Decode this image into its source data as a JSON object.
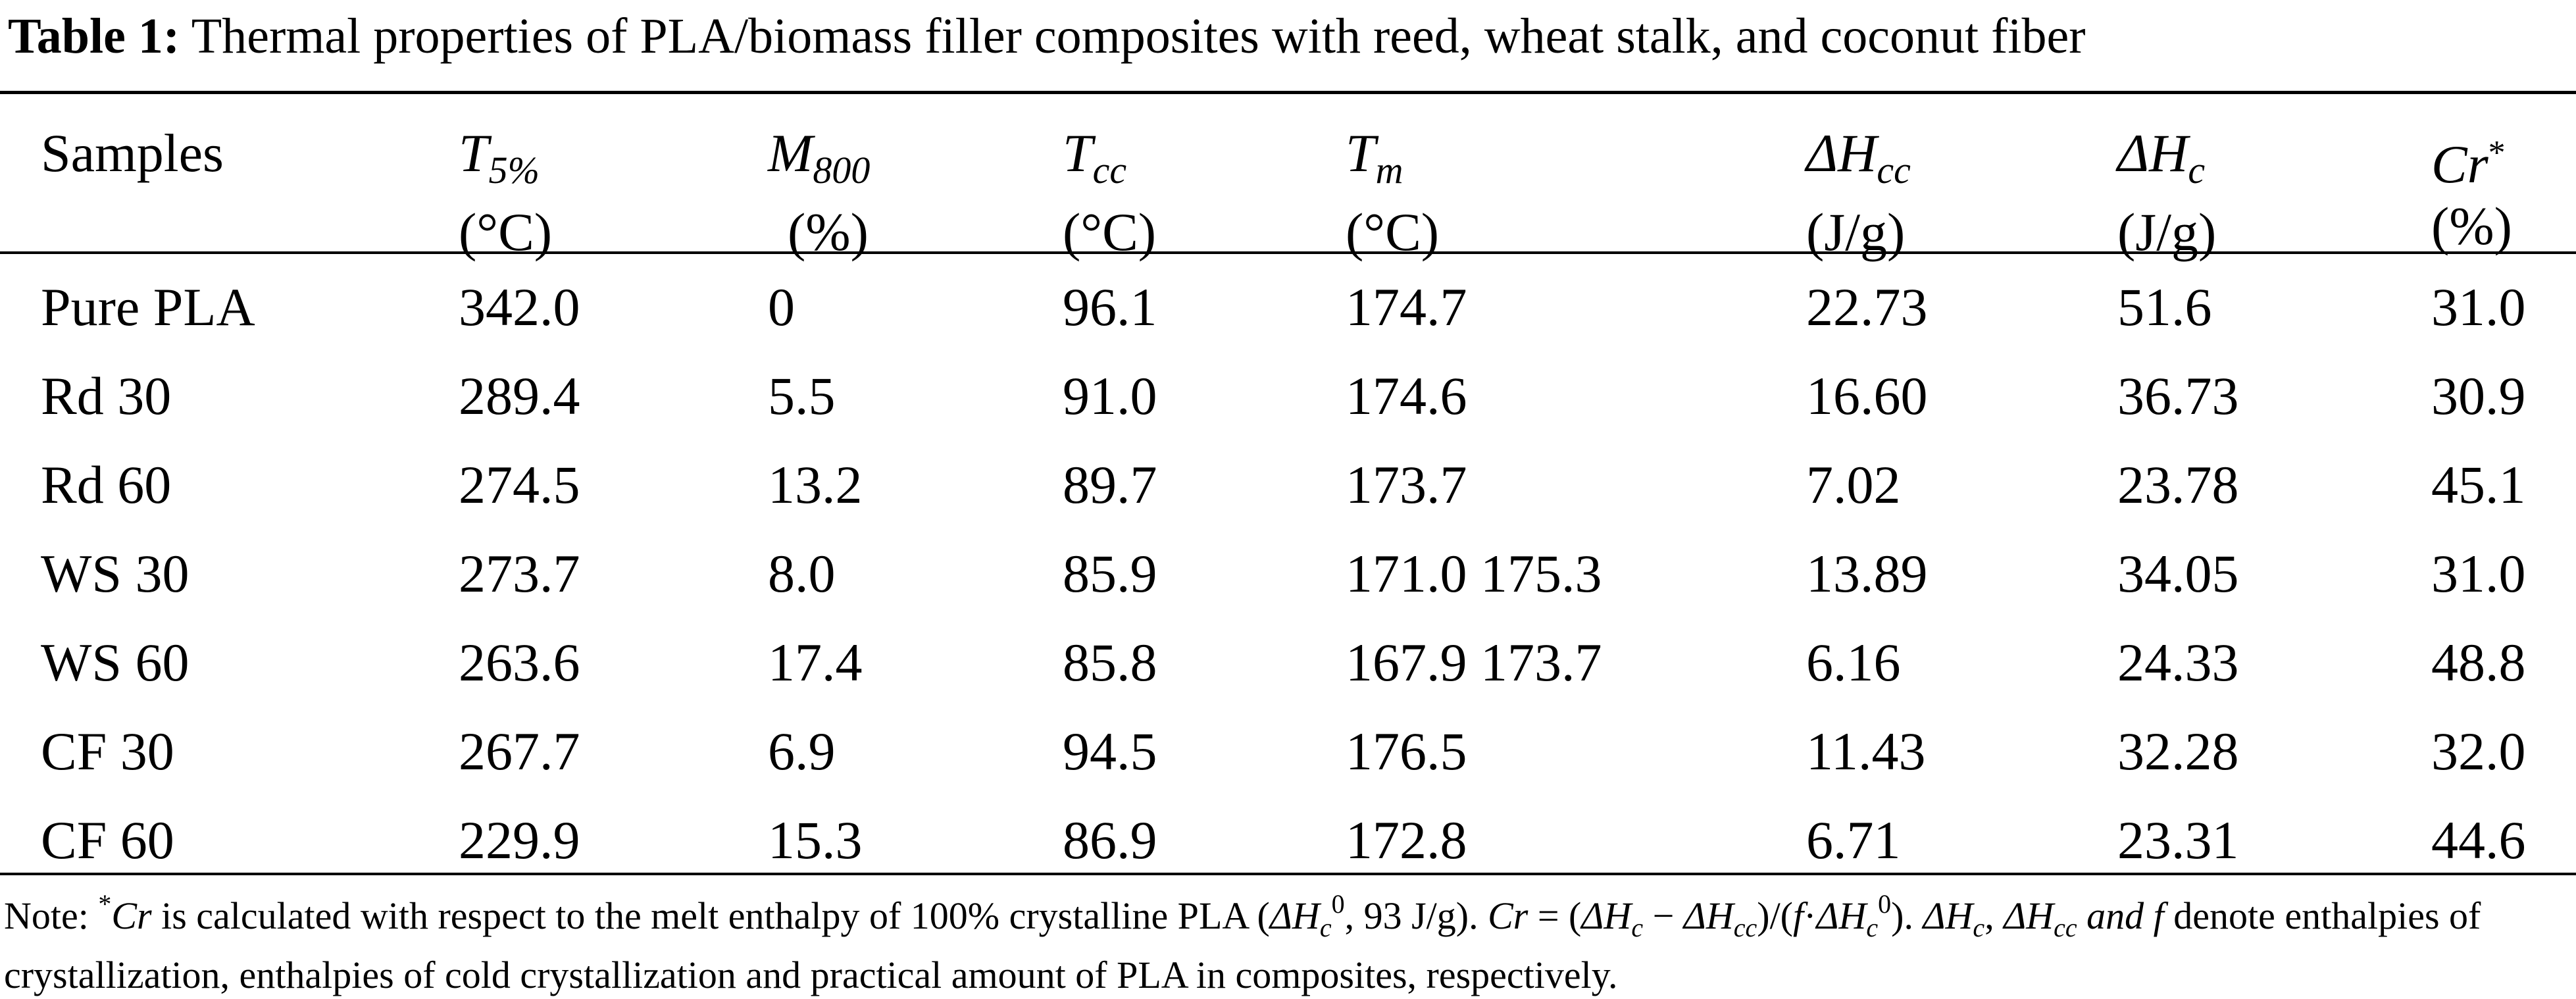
{
  "caption": {
    "label": "Table 1:",
    "text": "Thermal properties of PLA/biomass filler composites with reed, wheat stalk, and coconut fiber"
  },
  "headers": {
    "samples": "Samples",
    "t5": {
      "sym": "T",
      "sub": "5%",
      "unit": "(°C)"
    },
    "m800": {
      "sym": "M",
      "sub": "800",
      "unit": "(%)"
    },
    "tcc": {
      "sym": "T",
      "sub": "cc",
      "unit": "(°C)"
    },
    "tm": {
      "sym": "T",
      "sub": "m",
      "unit": "(°C)"
    },
    "dhcc": {
      "sym": "ΔH",
      "sub": "cc",
      "unit": "(J/g)"
    },
    "dhc": {
      "sym": "ΔH",
      "sub": "c",
      "unit": "(J/g)"
    },
    "cr": {
      "sym": "Cr",
      "sup": "*",
      "unit": "(%)"
    }
  },
  "rows": [
    {
      "sample": "Pure PLA",
      "t5": "342.0",
      "m800": "0",
      "tcc": "96.1",
      "tm": "174.7",
      "dhcc": "22.73",
      "dhc": "51.6",
      "cr": "31.0"
    },
    {
      "sample": "Rd 30",
      "t5": "289.4",
      "m800": "5.5",
      "tcc": "91.0",
      "tm": "174.6",
      "dhcc": "16.60",
      "dhc": "36.73",
      "cr": "30.9"
    },
    {
      "sample": "Rd 60",
      "t5": "274.5",
      "m800": "13.2",
      "tcc": "89.7",
      "tm": "173.7",
      "dhcc": "7.02",
      "dhc": "23.78",
      "cr": "45.1"
    },
    {
      "sample": "WS 30",
      "t5": "273.7",
      "m800": "8.0",
      "tcc": "85.9",
      "tm": "171.0 175.3",
      "dhcc": "13.89",
      "dhc": "34.05",
      "cr": "31.0"
    },
    {
      "sample": "WS 60",
      "t5": "263.6",
      "m800": "17.4",
      "tcc": "85.8",
      "tm": "167.9 173.7",
      "dhcc": "6.16",
      "dhc": "24.33",
      "cr": "48.8"
    },
    {
      "sample": "CF 30",
      "t5": "267.7",
      "m800": "6.9",
      "tcc": "94.5",
      "tm": "176.5",
      "dhcc": "11.43",
      "dhc": "32.28",
      "cr": "32.0"
    },
    {
      "sample": "CF 60",
      "t5": "229.9",
      "m800": "15.3",
      "tcc": "86.9",
      "tm": "172.8",
      "dhcc": "6.71",
      "dhc": "23.31",
      "cr": "44.6"
    }
  ],
  "note": {
    "p1": "Note: ",
    "p2": "*",
    "p3": "Cr",
    "p4": " is calculated with respect to the melt enthalpy of 100% crystalline PLA (",
    "p5": "ΔH",
    "p6": "c",
    "p7": "0",
    "p8": ", 93 J/g). ",
    "p9": "Cr",
    "p10": " = (",
    "p11": "ΔH",
    "p12": "c",
    "p13": " − ",
    "p14": "ΔH",
    "p15": "cc",
    "p16": ")/(",
    "p17": "f",
    "p18": "·",
    "p19": "ΔH",
    "p20": "c",
    "p21": "0",
    "p22": "). ",
    "p23": "ΔH",
    "p24": "c",
    "p25": ", ",
    "p26": "ΔH",
    "p27": "cc",
    "p28": " and f",
    "p29": " denote enthalpies of crystallization, enthalpies of cold crystallization and practical amount of PLA in composites, respectively."
  }
}
